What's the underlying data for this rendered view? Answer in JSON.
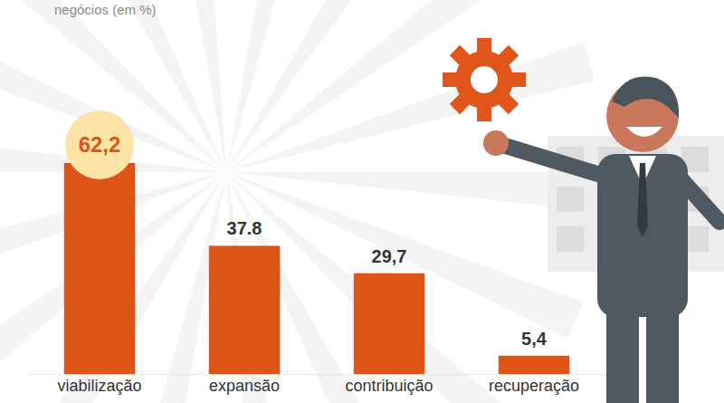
{
  "chart_data": {
    "type": "bar",
    "title": "negócios (em %)",
    "categories": [
      "viabilização",
      "expansão",
      "contribuição",
      "recuperação"
    ],
    "values": [
      62.2,
      37.8,
      29.7,
      5.4
    ],
    "value_labels": [
      "62,2",
      "37.8",
      "29,7",
      "5,4"
    ],
    "color": "#dd5516",
    "data_labels": true,
    "tick_labels": "x"
  }
}
